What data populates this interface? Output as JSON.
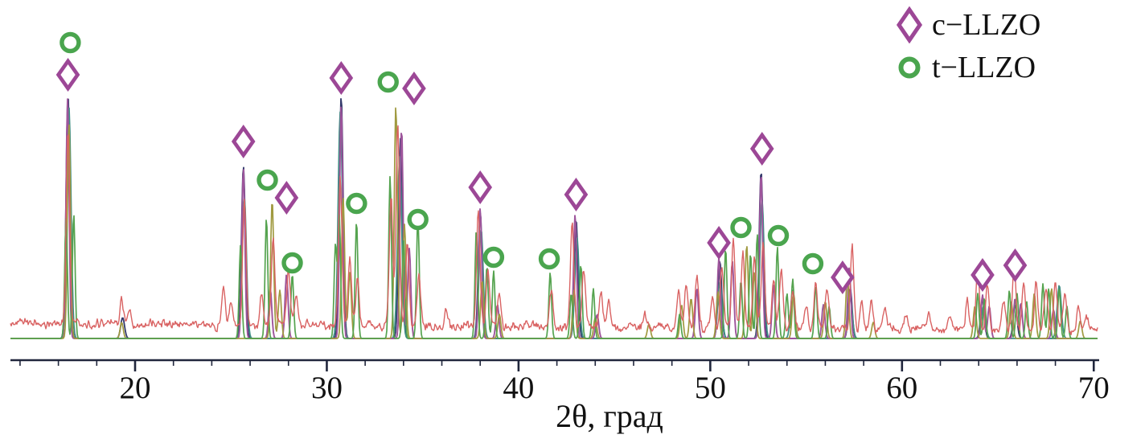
{
  "chart_data": {
    "type": "line",
    "title": "",
    "xlabel": "2θ, град",
    "ylabel": "",
    "x_range": [
      13.5,
      70.2
    ],
    "x_ticks": [
      20,
      30,
      40,
      50,
      60,
      70
    ],
    "x_minor_tick_step": 2,
    "grid": false,
    "y_axis_visible": false,
    "legend_position": "top-right",
    "legend": [
      {
        "label": "c−LLZO",
        "marker": "diamond",
        "color": "#9c4796"
      },
      {
        "label": "t−LLZO",
        "marker": "circle",
        "color": "#4aa54e"
      }
    ],
    "axis_color": "#20263c",
    "series": [
      {
        "id": "pattern-navy",
        "color": "#333a6b",
        "width": 1.8,
        "sigma": 0.1,
        "baseline": 421,
        "noise": 0,
        "peaks": [
          [
            16.5,
            303
          ],
          [
            19.35,
            26
          ],
          [
            25.65,
            214
          ],
          [
            30.75,
            301
          ],
          [
            33.85,
            250
          ],
          [
            38.0,
            158
          ],
          [
            43.0,
            148
          ],
          [
            50.5,
            96
          ],
          [
            52.65,
            208
          ],
          [
            57.3,
            62
          ],
          [
            64.2,
            48
          ],
          [
            65.9,
            42
          ]
        ]
      },
      {
        "id": "pattern-teal",
        "color": "#3f8e85",
        "width": 1.7,
        "sigma": 0.11,
        "baseline": 421,
        "noise": 0,
        "peaks": [
          [
            16.55,
            288
          ],
          [
            25.7,
            176
          ],
          [
            30.7,
            282
          ],
          [
            33.8,
            226
          ],
          [
            38.05,
            136
          ],
          [
            43.05,
            126
          ],
          [
            50.5,
            70
          ],
          [
            52.7,
            172
          ],
          [
            54.3,
            60
          ],
          [
            57.3,
            50
          ],
          [
            64.25,
            40
          ],
          [
            68.2,
            66
          ]
        ]
      },
      {
        "id": "pattern-c-llzo-purple",
        "color": "#9d559b",
        "width": 1.9,
        "sigma": 0.08,
        "baseline": 421,
        "noise": 0,
        "peaks": [
          [
            16.48,
            298
          ],
          [
            25.65,
            212
          ],
          [
            27.05,
            62
          ],
          [
            27.9,
            80
          ],
          [
            30.75,
            292
          ],
          [
            33.9,
            262
          ],
          [
            34.3,
            112
          ],
          [
            38.0,
            162
          ],
          [
            38.9,
            42
          ],
          [
            42.95,
            154
          ],
          [
            44.1,
            30
          ],
          [
            49.3,
            62
          ],
          [
            50.45,
            100
          ],
          [
            51.15,
            96
          ],
          [
            52.65,
            206
          ],
          [
            53.3,
            66
          ],
          [
            55.9,
            42
          ],
          [
            57.25,
            88
          ],
          [
            64.2,
            54
          ],
          [
            64.55,
            40
          ],
          [
            65.9,
            50
          ],
          [
            66.2,
            44
          ],
          [
            67.9,
            36
          ]
        ]
      },
      {
        "id": "pattern-olive",
        "color": "#a09a40",
        "width": 1.7,
        "sigma": 0.08,
        "baseline": 421,
        "noise": 0,
        "peaks": [
          [
            16.55,
            268
          ],
          [
            19.3,
            20
          ],
          [
            27.15,
            172
          ],
          [
            27.55,
            60
          ],
          [
            30.85,
            176
          ],
          [
            31.2,
            82
          ],
          [
            33.6,
            290
          ],
          [
            34.05,
            142
          ],
          [
            38.1,
            72
          ],
          [
            39.0,
            30
          ],
          [
            42.9,
            60
          ],
          [
            44.0,
            26
          ],
          [
            46.8,
            18
          ],
          [
            48.5,
            42
          ],
          [
            49.0,
            50
          ],
          [
            50.4,
            58
          ],
          [
            51.9,
            116
          ],
          [
            52.3,
            82
          ],
          [
            54.35,
            56
          ],
          [
            56.0,
            46
          ],
          [
            57.15,
            78
          ],
          [
            58.5,
            20
          ],
          [
            63.8,
            40
          ],
          [
            65.7,
            46
          ],
          [
            66.9,
            56
          ],
          [
            67.8,
            62
          ],
          [
            69.3,
            22
          ]
        ]
      },
      {
        "id": "pattern-t-llzo-green",
        "color": "#55a34f",
        "width": 1.7,
        "sigma": 0.07,
        "baseline": 421,
        "noise": 0,
        "peaks": [
          [
            16.4,
            150
          ],
          [
            16.8,
            155
          ],
          [
            25.5,
            116
          ],
          [
            26.85,
            150
          ],
          [
            28.2,
            80
          ],
          [
            30.45,
            116
          ],
          [
            30.65,
            152
          ],
          [
            31.55,
            146
          ],
          [
            33.3,
            202
          ],
          [
            34.0,
            122
          ],
          [
            34.75,
            152
          ],
          [
            37.8,
            136
          ],
          [
            38.35,
            90
          ],
          [
            38.7,
            84
          ],
          [
            41.65,
            82
          ],
          [
            42.75,
            56
          ],
          [
            43.25,
            92
          ],
          [
            43.9,
            62
          ],
          [
            48.4,
            30
          ],
          [
            50.8,
            112
          ],
          [
            51.6,
            72
          ],
          [
            52.1,
            106
          ],
          [
            52.45,
            130
          ],
          [
            53.5,
            114
          ],
          [
            54.0,
            56
          ],
          [
            54.3,
            74
          ],
          [
            55.5,
            66
          ],
          [
            56.2,
            40
          ],
          [
            63.95,
            56
          ],
          [
            64.3,
            50
          ],
          [
            65.6,
            60
          ],
          [
            66.0,
            56
          ],
          [
            66.5,
            46
          ],
          [
            67.35,
            68
          ],
          [
            67.65,
            62
          ],
          [
            68.2,
            62
          ],
          [
            68.6,
            40
          ]
        ]
      },
      {
        "id": "pattern-experimental-red",
        "color": "#d96363",
        "width": 1.4,
        "sigma": 0.09,
        "baseline": 402,
        "baseline_end": 411,
        "noise": 6,
        "peaks": [
          [
            16.5,
            238
          ],
          [
            19.3,
            28
          ],
          [
            19.7,
            22
          ],
          [
            24.6,
            46
          ],
          [
            25.0,
            30
          ],
          [
            25.7,
            152
          ],
          [
            26.6,
            40
          ],
          [
            27.2,
            112
          ],
          [
            28.0,
            72
          ],
          [
            28.4,
            40
          ],
          [
            30.7,
            186
          ],
          [
            31.2,
            82
          ],
          [
            31.6,
            60
          ],
          [
            33.35,
            162
          ],
          [
            33.7,
            256
          ],
          [
            34.2,
            102
          ],
          [
            34.8,
            62
          ],
          [
            36.2,
            20
          ],
          [
            37.9,
            142
          ],
          [
            38.4,
            72
          ],
          [
            39.0,
            40
          ],
          [
            41.7,
            46
          ],
          [
            42.8,
            130
          ],
          [
            43.4,
            72
          ],
          [
            44.3,
            42
          ],
          [
            44.7,
            34
          ],
          [
            46.6,
            18
          ],
          [
            48.35,
            46
          ],
          [
            48.75,
            56
          ],
          [
            49.3,
            66
          ],
          [
            50.1,
            36
          ],
          [
            50.6,
            76
          ],
          [
            51.2,
            106
          ],
          [
            51.7,
            96
          ],
          [
            52.3,
            86
          ],
          [
            52.75,
            106
          ],
          [
            53.3,
            62
          ],
          [
            53.7,
            72
          ],
          [
            54.3,
            50
          ],
          [
            55.0,
            30
          ],
          [
            55.5,
            56
          ],
          [
            56.1,
            46
          ],
          [
            57.4,
            106
          ],
          [
            57.9,
            36
          ],
          [
            58.4,
            34
          ],
          [
            59.1,
            26
          ],
          [
            60.2,
            20
          ],
          [
            61.4,
            18
          ],
          [
            62.5,
            14
          ],
          [
            63.4,
            36
          ],
          [
            63.95,
            76
          ],
          [
            64.45,
            55
          ],
          [
            65.3,
            36
          ],
          [
            65.85,
            76
          ],
          [
            66.35,
            56
          ],
          [
            67.0,
            56
          ],
          [
            67.5,
            50
          ],
          [
            68.0,
            62
          ],
          [
            68.5,
            48
          ],
          [
            69.2,
            28
          ],
          [
            69.6,
            20
          ]
        ]
      }
    ],
    "peak_markers": {
      "c_llzo_diamonds": [
        [
          16.5,
          93
        ],
        [
          25.65,
          176
        ],
        [
          27.9,
          246
        ],
        [
          30.75,
          97
        ],
        [
          34.55,
          110
        ],
        [
          38.0,
          233
        ],
        [
          43.0,
          242
        ],
        [
          50.45,
          302
        ],
        [
          52.7,
          185
        ],
        [
          56.9,
          345
        ],
        [
          64.2,
          342
        ],
        [
          65.9,
          330
        ]
      ],
      "t_llzo_circles": [
        [
          16.62,
          53
        ],
        [
          26.9,
          224
        ],
        [
          28.2,
          327
        ],
        [
          31.55,
          253
        ],
        [
          33.2,
          102
        ],
        [
          34.75,
          273
        ],
        [
          38.7,
          320
        ],
        [
          41.6,
          322
        ],
        [
          51.6,
          283
        ],
        [
          53.55,
          293
        ],
        [
          55.35,
          328
        ]
      ]
    }
  }
}
